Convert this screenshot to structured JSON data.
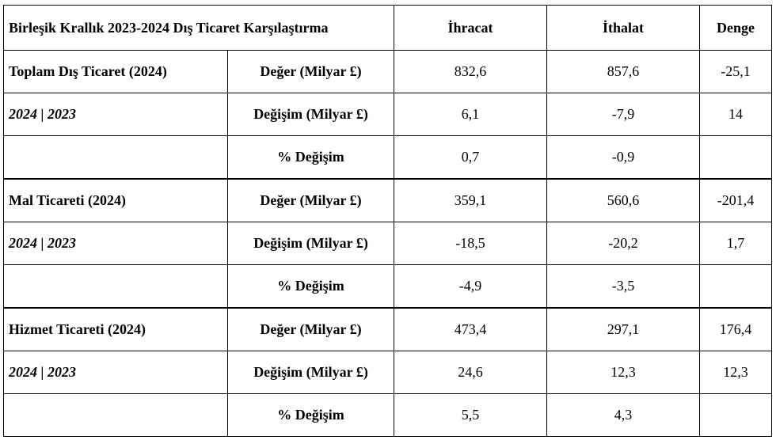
{
  "table": {
    "title": "Birleşik Krallık 2023-2024 Dış Ticaret Karşılaştırma",
    "columns": [
      "İhracat",
      "İthalat",
      "Denge"
    ],
    "sections": [
      {
        "label": "Toplam Dış Ticaret (2024)",
        "sublabel": "2024 | 2023",
        "rows": [
          {
            "metric": "Değer (Milyar £)",
            "export": "832,6",
            "import": "857,6",
            "balance": "-25,1"
          },
          {
            "metric": "Değişim (Milyar £)",
            "export": "6,1",
            "import": "-7,9",
            "balance": "14"
          },
          {
            "metric": "% Değişim",
            "export": "0,7",
            "import": "-0,9",
            "balance": ""
          }
        ]
      },
      {
        "label": "Mal Ticareti (2024)",
        "sublabel": "2024 | 2023",
        "rows": [
          {
            "metric": "Değer (Milyar £)",
            "export": "359,1",
            "import": "560,6",
            "balance": "-201,4"
          },
          {
            "metric": "Değişim (Milyar £)",
            "export": "-18,5",
            "import": "-20,2",
            "balance": "1,7"
          },
          {
            "metric": "% Değişim",
            "export": "-4,9",
            "import": "-3,5",
            "balance": ""
          }
        ]
      },
      {
        "label": "Hizmet Ticareti (2024)",
        "sublabel": "2024 | 2023",
        "rows": [
          {
            "metric": "Değer (Milyar £)",
            "export": "473,4",
            "import": "297,1",
            "balance": "176,4"
          },
          {
            "metric": "Değişim (Milyar £)",
            "export": "24,6",
            "import": "12,3",
            "balance": "12,3"
          },
          {
            "metric": "% Değişim",
            "export": "5,5",
            "import": "4,3",
            "balance": ""
          }
        ]
      }
    ]
  }
}
